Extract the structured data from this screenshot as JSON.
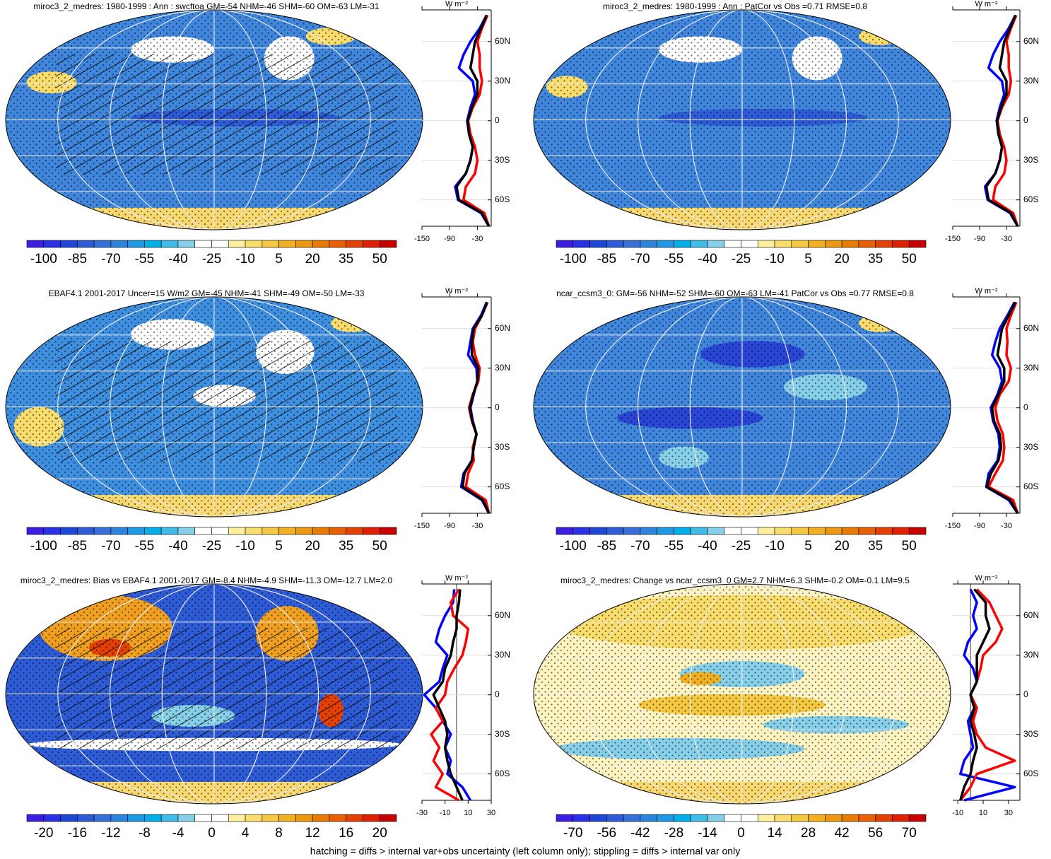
{
  "chart_data": [
    {
      "type": "map",
      "title": "miroc3_2_medres: 1980-1999 : Ann : swcftoa GM=-54 NHM=-46 SHM=-60 OM=-63 LM=-31",
      "colorbar": [
        -100,
        -85,
        -70,
        -55,
        -40,
        -25,
        -10,
        5,
        20,
        35,
        50
      ],
      "colors": [
        "#3c1ee0",
        "#2a30e6",
        "#1e46d6",
        "#2e5cd6",
        "#3670d8",
        "#2c84dc",
        "#1e98e4",
        "#00aee8",
        "#40bce8",
        "#86cfe8",
        "#ffffff",
        "#ffffff",
        "#fff0a0",
        "#f8dc6c",
        "#f4c840",
        "#f0b020",
        "#ec9810",
        "#e87c00",
        "#e86000",
        "#e44000",
        "#e02000",
        "#c80000"
      ]
    },
    {
      "type": "line",
      "xlabel": "W m⁻²",
      "xlim": [
        -150,
        0
      ],
      "xticks": [
        -150,
        -90,
        -30
      ],
      "ylim": [
        -80,
        84
      ],
      "yticks": [
        {
          "value": 60,
          "label": "60N"
        },
        {
          "value": 30,
          "label": "30N"
        },
        0,
        {
          "value": -30,
          "label": "30S"
        },
        {
          "value": -60,
          "label": "60S"
        }
      ],
      "y": [
        -80,
        -70,
        -60,
        -50,
        -40,
        -30,
        -20,
        -10,
        0,
        10,
        20,
        30,
        40,
        50,
        60,
        70,
        80
      ],
      "series": [
        {
          "color": "#0000ff",
          "values": [
            -5,
            -22,
            -72,
            -78,
            -55,
            -45,
            -40,
            -48,
            -52,
            -45,
            -35,
            -40,
            -70,
            -60,
            -45,
            -25,
            -10
          ]
        },
        {
          "color": "#ff0000",
          "values": [
            -5,
            -15,
            -60,
            -55,
            -35,
            -30,
            -35,
            -45,
            -50,
            -40,
            -25,
            -20,
            -25,
            -25,
            -30,
            -20,
            -8
          ]
        },
        {
          "color": "#000000",
          "values": [
            -5,
            -20,
            -70,
            -75,
            -55,
            -45,
            -40,
            -48,
            -51,
            -42,
            -30,
            -30,
            -45,
            -40,
            -35,
            -22,
            -10
          ]
        }
      ]
    },
    {
      "type": "map",
      "title": "miroc3_2_medres: 1980-1999 : Ann : PatCor vs Obs =0.71 RMSE=0.8",
      "colorbar": [
        -100,
        -85,
        -70,
        -55,
        -40,
        -25,
        -10,
        5,
        20,
        35,
        50
      ],
      "colors": [
        "#3c1ee0",
        "#2a30e6",
        "#1e46d6",
        "#2e5cd6",
        "#3670d8",
        "#2c84dc",
        "#1e98e4",
        "#00aee8",
        "#40bce8",
        "#86cfe8",
        "#ffffff",
        "#ffffff",
        "#fff0a0",
        "#f8dc6c",
        "#f4c840",
        "#f0b020",
        "#ec9810",
        "#e87c00",
        "#e86000",
        "#e44000",
        "#e02000",
        "#c80000"
      ]
    },
    {
      "type": "line",
      "xlabel": "W m⁻²",
      "xlim": [
        -150,
        0
      ],
      "xticks": [
        -150,
        -90,
        -30
      ],
      "ylim": [
        -80,
        84
      ],
      "yticks": [
        {
          "value": 60,
          "label": "60N"
        },
        {
          "value": 30,
          "label": "30N"
        },
        0,
        {
          "value": -30,
          "label": "30S"
        },
        {
          "value": -60,
          "label": "60S"
        }
      ],
      "y": [
        -80,
        -70,
        -60,
        -50,
        -40,
        -30,
        -20,
        -10,
        0,
        10,
        20,
        30,
        40,
        50,
        60,
        70,
        80
      ],
      "series": [
        {
          "color": "#0000ff",
          "values": [
            -5,
            -22,
            -72,
            -78,
            -55,
            -45,
            -40,
            -48,
            -52,
            -45,
            -35,
            -40,
            -70,
            -60,
            -45,
            -25,
            -10
          ]
        },
        {
          "color": "#ff0000",
          "values": [
            -5,
            -15,
            -60,
            -55,
            -35,
            -30,
            -35,
            -45,
            -50,
            -40,
            -25,
            -20,
            -25,
            -25,
            -30,
            -20,
            -8
          ]
        },
        {
          "color": "#000000",
          "values": [
            -5,
            -20,
            -70,
            -75,
            -55,
            -45,
            -40,
            -48,
            -51,
            -42,
            -30,
            -30,
            -45,
            -40,
            -35,
            -22,
            -10
          ]
        }
      ]
    },
    {
      "type": "map",
      "title": "EBAF4.1 2001-2017 Uncer=15 W/m2 GM=-45 NHM=-41 SHM=-49 OM=-50 LM=-33",
      "colorbar": [
        -100,
        -85,
        -70,
        -55,
        -40,
        -25,
        -10,
        5,
        20,
        35,
        50
      ],
      "colors": [
        "#3c1ee0",
        "#2a30e6",
        "#1e46d6",
        "#2e5cd6",
        "#3670d8",
        "#2c84dc",
        "#1e98e4",
        "#00aee8",
        "#40bce8",
        "#86cfe8",
        "#ffffff",
        "#ffffff",
        "#fff0a0",
        "#f8dc6c",
        "#f4c840",
        "#f0b020",
        "#ec9810",
        "#e87c00",
        "#e86000",
        "#e44000",
        "#e02000",
        "#c80000"
      ]
    },
    {
      "type": "line",
      "xlabel": "W m⁻²",
      "xlim": [
        -150,
        0
      ],
      "xticks": [
        -150,
        -90,
        -30
      ],
      "ylim": [
        -80,
        84
      ],
      "yticks": [
        {
          "value": 60,
          "label": "60N"
        },
        {
          "value": 30,
          "label": "30N"
        },
        0,
        {
          "value": -30,
          "label": "30S"
        },
        {
          "value": -60,
          "label": "60S"
        }
      ],
      "y": [
        -80,
        -70,
        -60,
        -50,
        -40,
        -30,
        -20,
        -10,
        0,
        10,
        20,
        30,
        40,
        50,
        60,
        70,
        80
      ],
      "series": [
        {
          "color": "#0000ff",
          "values": [
            -5,
            -20,
            -65,
            -60,
            -42,
            -38,
            -32,
            -40,
            -45,
            -38,
            -30,
            -32,
            -50,
            -45,
            -40,
            -22,
            -10
          ]
        },
        {
          "color": "#ff0000",
          "values": [
            -5,
            -12,
            -55,
            -50,
            -38,
            -40,
            -32,
            -42,
            -48,
            -40,
            -28,
            -25,
            -35,
            -40,
            -35,
            -20,
            -8
          ]
        },
        {
          "color": "#000000",
          "values": [
            -5,
            -18,
            -62,
            -58,
            -42,
            -38,
            -32,
            -41,
            -46,
            -39,
            -30,
            -28,
            -42,
            -42,
            -38,
            -20,
            -9
          ]
        }
      ]
    },
    {
      "type": "map",
      "title": "ncar_ccsm3_0: GM=-56 NHM=-52 SHM=-60 OM=-63 LM=-41 PatCor vs Obs =0.77 RMSE=0.8",
      "colorbar": [
        -100,
        -85,
        -70,
        -55,
        -40,
        -25,
        -10,
        5,
        20,
        35,
        50
      ],
      "colors": [
        "#3c1ee0",
        "#2a30e6",
        "#1e46d6",
        "#2e5cd6",
        "#3670d8",
        "#2c84dc",
        "#1e98e4",
        "#00aee8",
        "#40bce8",
        "#86cfe8",
        "#ffffff",
        "#ffffff",
        "#fff0a0",
        "#f8dc6c",
        "#f4c840",
        "#f0b020",
        "#ec9810",
        "#e87c00",
        "#e86000",
        "#e44000",
        "#e02000",
        "#c80000"
      ]
    },
    {
      "type": "line",
      "xlabel": "W m⁻²",
      "xlim": [
        -150,
        0
      ],
      "xticks": [
        -150,
        -90,
        -30
      ],
      "ylim": [
        -80,
        84
      ],
      "yticks": [
        {
          "value": 60,
          "label": "60N"
        },
        {
          "value": 30,
          "label": "30N"
        },
        0,
        {
          "value": -30,
          "label": "30S"
        },
        {
          "value": -60,
          "label": "60S"
        }
      ],
      "y": [
        -80,
        -70,
        -60,
        -50,
        -40,
        -30,
        -20,
        -10,
        0,
        10,
        20,
        30,
        40,
        50,
        60,
        70,
        80
      ],
      "series": [
        {
          "color": "#0000ff",
          "values": [
            -5,
            -25,
            -75,
            -70,
            -50,
            -45,
            -48,
            -60,
            -65,
            -50,
            -40,
            -45,
            -62,
            -55,
            -45,
            -28,
            -12
          ]
        },
        {
          "color": "#ff0000",
          "values": [
            -5,
            -15,
            -70,
            -55,
            -38,
            -35,
            -38,
            -50,
            -55,
            -45,
            -25,
            -20,
            -30,
            -28,
            -30,
            -20,
            -8
          ]
        },
        {
          "color": "#000000",
          "values": [
            -5,
            -22,
            -74,
            -65,
            -48,
            -42,
            -45,
            -58,
            -62,
            -48,
            -35,
            -35,
            -50,
            -45,
            -40,
            -25,
            -10
          ]
        }
      ]
    },
    {
      "type": "map",
      "title": "miroc3_2_medres: Bias vs EBAF4.1 2001-2017 GM=-8.4 NHM=-4.9 SHM=-11.3 OM=-12.7 LM=2.0",
      "colorbar": [
        -20,
        -16,
        -12,
        -8,
        -4,
        0,
        4,
        8,
        12,
        16,
        20
      ],
      "colors": [
        "#3c1ee0",
        "#2a30e6",
        "#1e46d6",
        "#2e5cd6",
        "#3670d8",
        "#2c84dc",
        "#1e98e4",
        "#00aee8",
        "#40bce8",
        "#86cfe8",
        "#ffffff",
        "#ffffff",
        "#fff0a0",
        "#f8dc6c",
        "#f4c840",
        "#f0b020",
        "#ec9810",
        "#e87c00",
        "#e86000",
        "#e44000",
        "#e02000",
        "#c80000"
      ]
    },
    {
      "type": "line",
      "xlabel": "W m⁻²",
      "xlim": [
        -30,
        30
      ],
      "xticks": [
        -30,
        -10,
        10,
        30
      ],
      "ylim": [
        -80,
        84
      ],
      "yticks": [
        {
          "value": 60,
          "label": "60N"
        },
        {
          "value": 30,
          "label": "30N"
        },
        0,
        {
          "value": -30,
          "label": "30S"
        },
        {
          "value": -60,
          "label": "60S"
        }
      ],
      "y": [
        -80,
        -70,
        -60,
        -50,
        -40,
        -30,
        -20,
        -10,
        0,
        10,
        20,
        30,
        40,
        50,
        60,
        70,
        80
      ],
      "series": [
        {
          "color": "#0000ff",
          "values": [
            12,
            5,
            -8,
            -5,
            -10,
            -5,
            -12,
            -18,
            -28,
            -15,
            -12,
            -8,
            -18,
            -15,
            -10,
            -3,
            -2
          ]
        },
        {
          "color": "#ff0000",
          "values": [
            2,
            -18,
            -12,
            -20,
            -15,
            -22,
            -12,
            -18,
            -10,
            -8,
            -2,
            5,
            8,
            10,
            -3,
            -5,
            2
          ]
        },
        {
          "color": "#000000",
          "values": [
            5,
            0,
            -5,
            -8,
            -10,
            -8,
            -10,
            -15,
            -20,
            -12,
            -10,
            -5,
            -3,
            0,
            0,
            2,
            3
          ]
        }
      ]
    },
    {
      "type": "map",
      "title": "miroc3_2_medres: Change vs ncar_ccsm3_0 GM=2.7 NHM=6.3 SHM=-0.2 OM=-0.1 LM=9.5",
      "colorbar": [
        -70,
        -56,
        -42,
        -28,
        -14,
        0,
        14,
        28,
        42,
        56,
        70
      ],
      "colors": [
        "#3c1ee0",
        "#2a30e6",
        "#1e46d6",
        "#2e5cd6",
        "#3670d8",
        "#2c84dc",
        "#1e98e4",
        "#00aee8",
        "#40bce8",
        "#86cfe8",
        "#ffffff",
        "#ffffff",
        "#fff0a0",
        "#f8dc6c",
        "#f4c840",
        "#f0b020",
        "#ec9810",
        "#e87c00",
        "#e86000",
        "#e44000",
        "#e02000",
        "#c80000"
      ]
    },
    {
      "type": "line",
      "xlabel": "W m⁻²",
      "xlim": [
        -14,
        39
      ],
      "xticks": [
        -10,
        10,
        30
      ],
      "ylim": [
        -80,
        84
      ],
      "yticks": [
        {
          "value": 60,
          "label": "60N"
        },
        {
          "value": 30,
          "label": "30N"
        },
        0,
        {
          "value": -30,
          "label": "30S"
        },
        {
          "value": -60,
          "label": "60S"
        }
      ],
      "y": [
        -80,
        -70,
        -60,
        -50,
        -40,
        -30,
        -20,
        -10,
        0,
        10,
        20,
        30,
        40,
        50,
        60,
        70,
        80
      ],
      "series": [
        {
          "color": "#0000ff",
          "values": [
            -5,
            35,
            -8,
            -5,
            2,
            0,
            -2,
            3,
            0,
            5,
            2,
            -5,
            -2,
            5,
            2,
            5,
            0
          ]
        },
        {
          "color": "#ff0000",
          "values": [
            -8,
            0,
            5,
            35,
            12,
            5,
            2,
            5,
            0,
            5,
            8,
            10,
            20,
            25,
            20,
            15,
            5
          ]
        },
        {
          "color": "#000000",
          "values": [
            -8,
            -5,
            0,
            2,
            5,
            3,
            0,
            3,
            0,
            5,
            5,
            5,
            10,
            15,
            12,
            12,
            3
          ]
        }
      ]
    }
  ],
  "footnote": "hatching = diffs > internal var+obs uncertainty (left column only); stippling = diffs > internal var only"
}
